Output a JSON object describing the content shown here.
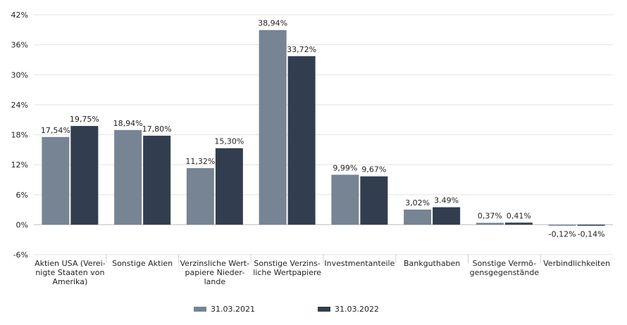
{
  "chart_data": {
    "type": "bar",
    "categories": [
      [
        "Aktien USA (Verei-",
        "nigte Staaten von",
        "Amerika)"
      ],
      [
        "Sonstige Aktien"
      ],
      [
        "Verzinsliche Wert-",
        "papiere Nieder-",
        "lande"
      ],
      [
        "Sonstige Verzins-",
        "liche Wertpapiere"
      ],
      [
        "Investmentanteile"
      ],
      [
        "Bankguthaben"
      ],
      [
        "Sonstige Vermö-",
        "gensgegenstände"
      ],
      [
        "Verbindlichkeiten"
      ]
    ],
    "series": [
      {
        "name": "31.03.2021",
        "color": "#768494",
        "values": [
          17.54,
          18.94,
          11.32,
          38.94,
          9.99,
          3.02,
          0.37,
          -0.12
        ],
        "labels": [
          "17,54%",
          "18,94%",
          "11,32%",
          "38,94%",
          "9,99%",
          "3,02%",
          "0,37%",
          "-0,12%"
        ]
      },
      {
        "name": "31.03.2022",
        "color": "#323e4f",
        "values": [
          19.75,
          17.8,
          15.3,
          33.72,
          9.67,
          3.49,
          0.41,
          -0.14
        ],
        "labels": [
          "19,75%",
          "17,80%",
          "15,30%",
          "33,72%",
          "9,67%",
          "3.49%",
          "0,41%",
          "-0,14%"
        ]
      }
    ],
    "ylim": [
      -6,
      42
    ],
    "yticks": [
      42,
      36,
      30,
      24,
      18,
      12,
      6,
      0,
      -6
    ],
    "ytick_labels": [
      "42%",
      "36%",
      "30%",
      "24%",
      "18%",
      "12%",
      "6%",
      "0%",
      "-6%"
    ],
    "grid": true,
    "legend_position": "bottom"
  }
}
